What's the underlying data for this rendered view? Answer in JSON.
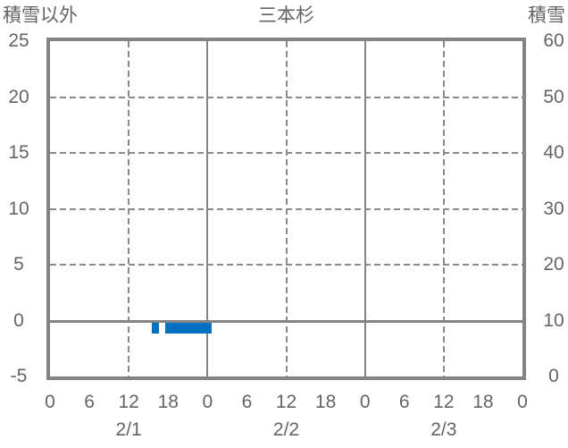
{
  "chart": {
    "title": "三本杉",
    "left_axis_title": "積雪以外",
    "right_axis_title": "積雪"
  },
  "chart_data": {
    "type": "bar",
    "title": "三本杉",
    "left_axis": {
      "label": "積雪以外",
      "ticks": [
        25,
        20,
        15,
        10,
        5,
        0,
        -5
      ],
      "range": [
        -5,
        25
      ]
    },
    "right_axis": {
      "label": "積雪",
      "ticks": [
        60,
        50,
        40,
        30,
        20,
        10,
        0
      ],
      "range": [
        0,
        60
      ]
    },
    "x_axis": {
      "range_hours": [
        0,
        72
      ],
      "hour_tick_labels": [
        "0",
        "6",
        "12",
        "18",
        "0",
        "6",
        "12",
        "18",
        "0",
        "6",
        "12",
        "18",
        "0"
      ],
      "hour_tick_positions": [
        0,
        6,
        12,
        18,
        24,
        30,
        36,
        42,
        48,
        54,
        60,
        66,
        72
      ],
      "date_labels": [
        "2/1",
        "2/2",
        "2/3"
      ],
      "date_positions_hours": [
        12,
        36,
        60
      ]
    },
    "gridlines": {
      "vertical_solid_hours": [
        24,
        48
      ],
      "vertical_dashed_hours": [
        12,
        36,
        60
      ],
      "horizontal_dashed_values": [
        20,
        15,
        10,
        5
      ],
      "horizontal_solid_values": [
        0
      ]
    },
    "legend": "none",
    "series": [
      {
        "name": "積雪以外",
        "type": "bar",
        "color": "#0070C0",
        "bar_width_hours": 1,
        "points": [
          {
            "hour": 16,
            "value": -1
          },
          {
            "hour": 18,
            "value": -1
          },
          {
            "hour": 19,
            "value": -1
          },
          {
            "hour": 20,
            "value": -1
          },
          {
            "hour": 21,
            "value": -1
          },
          {
            "hour": 22,
            "value": -1
          },
          {
            "hour": 23,
            "value": -1
          },
          {
            "hour": 24,
            "value": -1
          }
        ]
      }
    ]
  },
  "colors": {
    "bar": "#0070C0",
    "axis_border": "#848484",
    "gridline": "#8a8a8a",
    "text": "#646464",
    "background": "#ffffff"
  }
}
